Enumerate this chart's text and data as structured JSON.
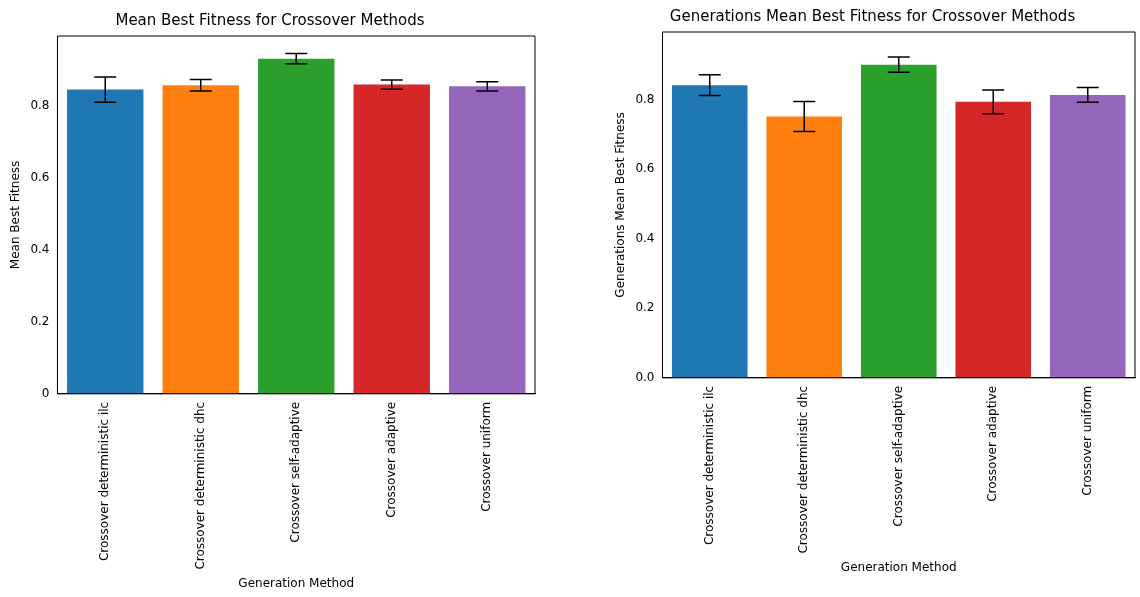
{
  "chart_data": [
    {
      "type": "bar",
      "title": "Mean Best Fitness for Crossover Methods",
      "xlabel": "Generation Method",
      "ylabel": "Mean Best Fitness",
      "categories": [
        "Crossover deterministic ilc",
        "Crossover deterministic dhc",
        "Crossover self-adaptive",
        "Crossover adaptive",
        "Crossover uniform"
      ],
      "colors": [
        "#1f77b4",
        "#ff7f0e",
        "#2ca02c",
        "#d62728",
        "#9467bd"
      ],
      "values": [
        0.846,
        0.858,
        0.932,
        0.86,
        0.855
      ],
      "errors": [
        0.035,
        0.016,
        0.014,
        0.013,
        0.013
      ],
      "ylim": [
        0,
        0.995
      ],
      "yticks": [
        0,
        {
          "value": 0.2,
          "label": "0.2"
        },
        {
          "value": 0.4,
          "label": "0.4"
        },
        {
          "value": 0.6,
          "label": "0.6"
        },
        {
          "value": 0.8,
          "label": "0.8"
        }
      ]
    },
    {
      "type": "bar",
      "title": "Generations Mean Best Fitness for Crossover Methods",
      "xlabel": "Generation Method",
      "ylabel": "Generations Mean Best Fitness",
      "categories": [
        "Crossover deterministic ilc",
        "Crossover deterministic dhc",
        "Crossover self-adaptive",
        "Crossover adaptive",
        "Crossover uniform"
      ],
      "colors": [
        "#1f77b4",
        "#ff7f0e",
        "#2ca02c",
        "#d62728",
        "#9467bd"
      ],
      "values": [
        0.842,
        0.752,
        0.901,
        0.794,
        0.814
      ],
      "errors": [
        0.03,
        0.043,
        0.022,
        0.034,
        0.021
      ],
      "ylim": [
        0,
        0.995
      ],
      "yticks": [
        {
          "value": 0,
          "label": "0.0"
        },
        {
          "value": 0.2,
          "label": "0.2"
        },
        {
          "value": 0.4,
          "label": "0.4"
        },
        {
          "value": 0.6,
          "label": "0.6"
        },
        {
          "value": 0.8,
          "label": "0.8"
        }
      ]
    }
  ]
}
